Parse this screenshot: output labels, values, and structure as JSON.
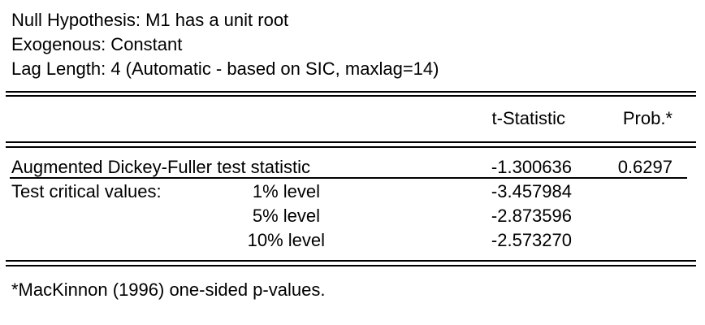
{
  "header": {
    "null_hypothesis": "Null Hypothesis: M1 has a unit root",
    "exogenous": "Exogenous: Constant",
    "lag_length": "Lag Length: 4 (Automatic - based on SIC, maxlag=14)"
  },
  "table": {
    "columns": {
      "t_statistic": "t-Statistic",
      "prob": "Prob.*"
    },
    "adf_row": {
      "label": "Augmented Dickey-Fuller test statistic",
      "t_statistic": "-1.300636",
      "prob": "0.6297"
    },
    "critical_values": {
      "label": "Test critical values:",
      "levels": [
        {
          "level": "1% level",
          "value": "-3.457984"
        },
        {
          "level": "5% level",
          "value": "-2.873596"
        },
        {
          "level": "10% level",
          "value": "-2.573270"
        }
      ]
    }
  },
  "footnote": "*MacKinnon (1996) one-sided p-values."
}
